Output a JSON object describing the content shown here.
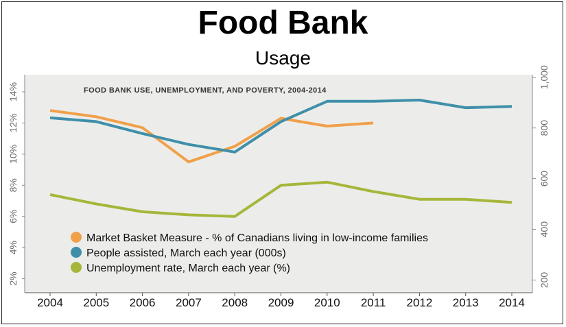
{
  "header": {
    "title": "Food Bank",
    "subtitle": "Usage"
  },
  "chart_data": {
    "type": "line",
    "title": "FOOD BANK USE, UNEMPLOYMENT, AND POVERTY, 2004-2014",
    "categories": [
      "2004",
      "2005",
      "2006",
      "2007",
      "2008",
      "2009",
      "2010",
      "2011",
      "2012",
      "2013",
      "2014"
    ],
    "left_axis": {
      "ticks": [
        "2%",
        "4%",
        "6%",
        "8%",
        "10%",
        "12%",
        "14%"
      ],
      "tick_values": [
        2,
        4,
        6,
        8,
        10,
        12,
        14
      ],
      "range": [
        1.1,
        15.1
      ]
    },
    "right_axis": {
      "ticks": [
        "200",
        "400",
        "600",
        "800",
        "1,000"
      ],
      "tick_values": [
        200,
        400,
        600,
        800,
        1000
      ],
      "range": [
        150,
        1010
      ]
    },
    "series": [
      {
        "name": "Market Basket Measure - % of Canadians living in low-income families",
        "axis": "left",
        "color": "#f0a04a",
        "values": [
          12.8,
          12.4,
          11.7,
          9.5,
          10.5,
          12.3,
          11.8,
          12.0,
          null,
          null,
          null
        ]
      },
      {
        "name": "People assisted, March each year (000s)",
        "axis": "right",
        "color": "#3f8fa9",
        "values": [
          840,
          825,
          778,
          735,
          705,
          825,
          905,
          905,
          910,
          880,
          885
        ]
      },
      {
        "name": "Unemployment rate, March each year (%)",
        "axis": "left",
        "color": "#a6b63a",
        "values": [
          7.4,
          6.8,
          6.3,
          6.1,
          6.0,
          8.0,
          8.2,
          7.6,
          7.1,
          7.1,
          6.9
        ]
      }
    ],
    "legend_position": "bottom-left",
    "grid": false
  },
  "colors": {
    "plot_background": "#ecedea",
    "axis_text": "#6b6b6b"
  }
}
